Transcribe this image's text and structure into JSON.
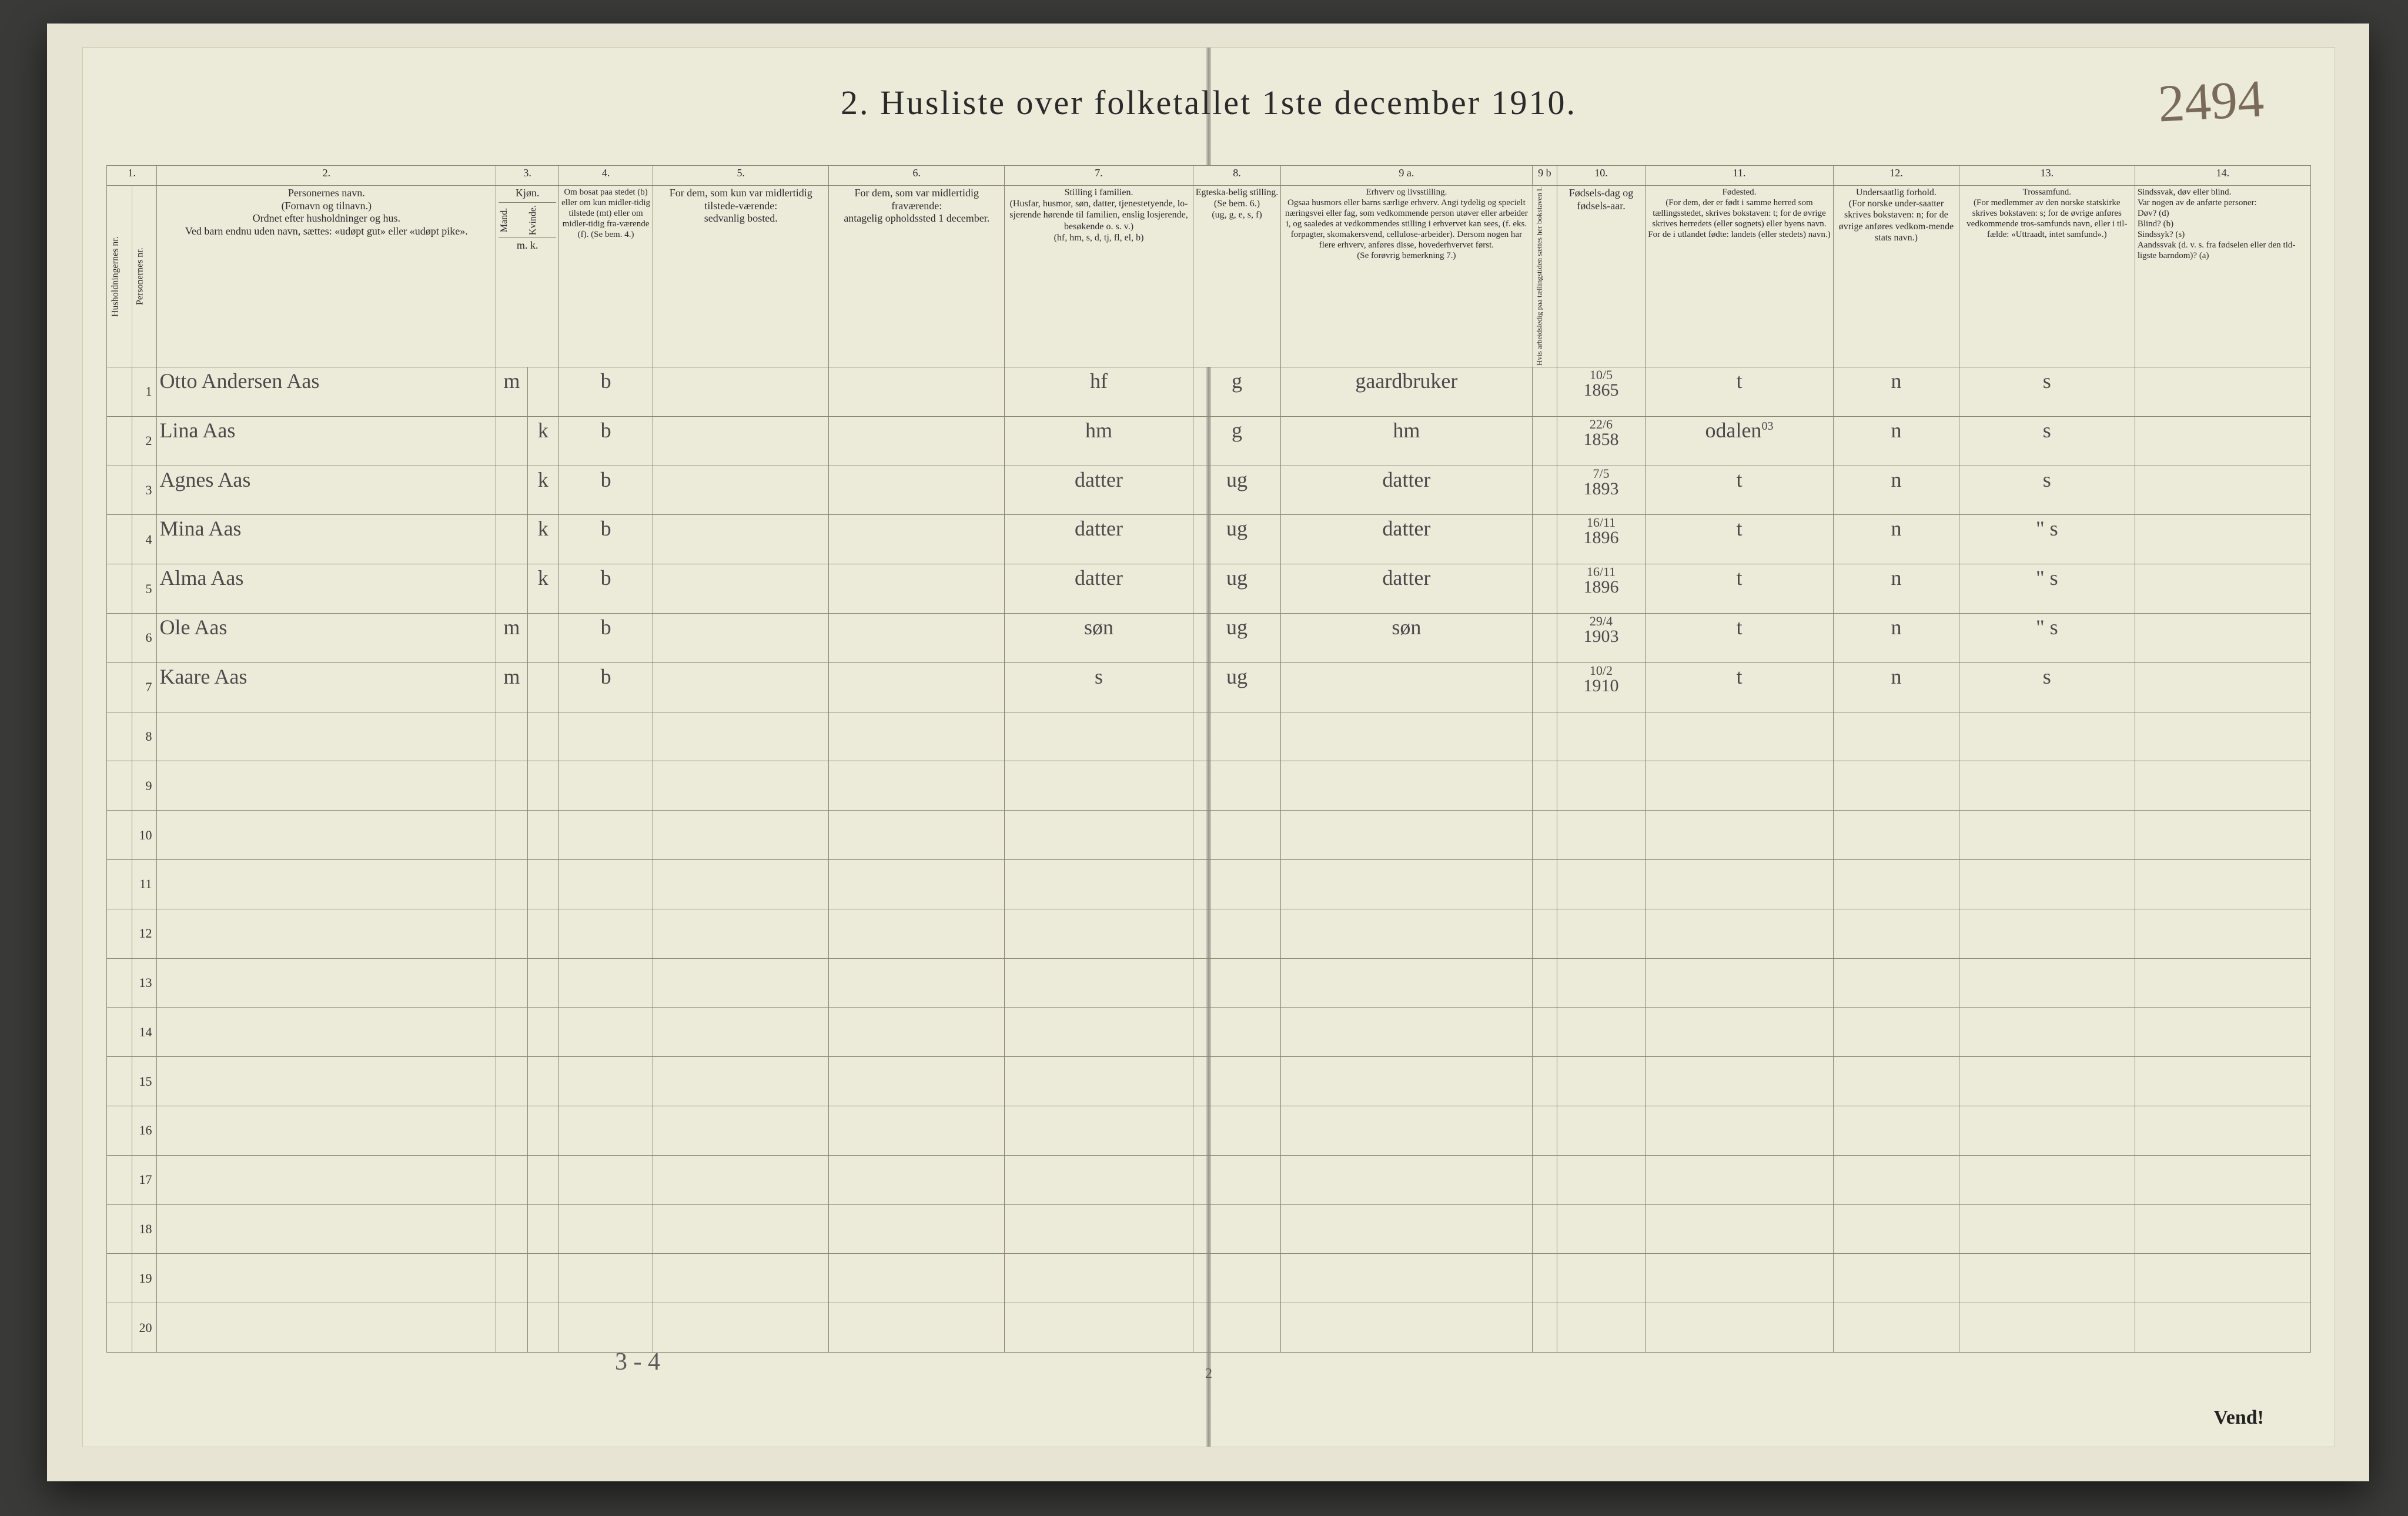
{
  "title": "2.  Husliste over folketallet 1ste december 1910.",
  "page_number_handwritten": "2494",
  "footer_page": "2",
  "vend": "Vend!",
  "tally": "3 - 4",
  "colors": {
    "paper": "#ecead9",
    "ink_print": "#2a2a2a",
    "ink_hand": "#4a4a4a",
    "rule": "#8a8470",
    "background": "#3a3a38"
  },
  "col_numbers": [
    "1.",
    "2.",
    "3.",
    "4.",
    "5.",
    "6.",
    "7.",
    "8.",
    "9 a.",
    "9 b",
    "10.",
    "11.",
    "12.",
    "13.",
    "14."
  ],
  "headers": {
    "c1a": "Husholdningernes nr.",
    "c1b": "Personernes nr.",
    "c2": "Personernes navn.\n(Fornavn og tilnavn.)\nOrdnet efter husholdninger og hus.\nVed barn endnu uden navn, sættes: «udøpt gut» eller «udøpt pike».",
    "c3": "Kjøn.",
    "c3a": "Mand.",
    "c3b": "Kvinde.",
    "c3sub": "m.  k.",
    "c4": "Om bosat paa stedet (b) eller om kun midler-tidig tilstede (mt) eller om midler-tidig fra-værende (f). (Se bem. 4.)",
    "c5": "For dem, som kun var midlertidig tilstede-værende:\nsedvanlig bosted.",
    "c6": "For dem, som var midlertidig fraværende:\nantagelig opholdssted 1 december.",
    "c7": "Stilling i familien.\n(Husfar, husmor, søn, datter, tjenestetyende, lo-sjerende hørende til familien, enslig losjerende, besøkende o. s. v.)\n(hf, hm, s, d, tj, fl, el, b)",
    "c8": "Egteska-belig stilling.\n(Se bem. 6.)\n(ug, g, e, s, f)",
    "c9a": "Erhverv og livsstilling.\nOgsaa husmors eller barns særlige erhverv. Angi tydelig og specielt næringsvei eller fag, som vedkommende person utøver eller arbeider i, og saaledes at vedkommendes stilling i erhvervet kan sees, (f. eks. forpagter, skomakersvend, cellulose-arbeider). Dersom nogen har flere erhverv, anføres disse, hovederhvervet først.\n(Se forøvrig bemerkning 7.)",
    "c9b": "Hvis arbeidsledig paa tællingstiden sættes her bokstaven  l.",
    "c10": "Fødsels-dag og fødsels-aar.",
    "c11": "Fødested.\n(For dem, der er født i samme herred som tællingsstedet, skrives bokstaven: t; for de øvrige skrives herredets (eller sognets) eller byens navn. For de i utlandet fødte: landets (eller stedets) navn.)",
    "c12": "Undersaatlig forhold.\n(For norske under-saatter skrives bokstaven: n; for de øvrige anføres vedkom-mende stats navn.)",
    "c13": "Trossamfund.\n(For medlemmer av den norske statskirke skrives bokstaven: s; for de øvrige anføres vedkommende tros-samfunds navn, eller i til-fælde: «Uttraadt, intet samfund».)",
    "c14": "Sindssvak, døv eller blind.\nVar nogen av de anførte personer:\nDøv?       (d)\nBlind?     (b)\nSindssyk? (s)\nAandssvak (d. v. s. fra fødselen eller den tid-ligste barndom)? (a)"
  },
  "rows": [
    {
      "n": "1",
      "name": "Otto Andersen Aas",
      "sex_m": "m",
      "sex_k": "",
      "res": "b",
      "fam": "hf",
      "eg": "g",
      "occ": "gaardbruker",
      "dob_top": "10/5",
      "dob": "1865",
      "birthplace": "t",
      "nat": "n",
      "rel": "s"
    },
    {
      "n": "2",
      "name": "Lina Aas",
      "sex_m": "",
      "sex_k": "k",
      "res": "b",
      "fam": "hm",
      "eg": "g",
      "occ": "hm",
      "dob_top": "22/6",
      "dob": "1858",
      "birthplace": "odalen",
      "birthplace_sup": "03",
      "nat": "n",
      "rel": "s"
    },
    {
      "n": "3",
      "name": "Agnes Aas",
      "sex_m": "",
      "sex_k": "k",
      "res": "b",
      "fam": "datter",
      "eg": "ug",
      "occ": "datter",
      "dob_top": "7/5",
      "dob": "1893",
      "birthplace": "t",
      "nat": "n",
      "rel": "s"
    },
    {
      "n": "4",
      "name": "Mina Aas",
      "sex_m": "",
      "sex_k": "k",
      "res": "b",
      "fam": "datter",
      "eg": "ug",
      "occ": "datter",
      "dob_top": "16/11",
      "dob": "1896",
      "birthplace": "t",
      "nat": "n",
      "rel": "s",
      "rel_mark": "\""
    },
    {
      "n": "5",
      "name": "Alma Aas",
      "sex_m": "",
      "sex_k": "k",
      "res": "b",
      "fam": "datter",
      "eg": "ug",
      "occ": "datter",
      "dob_top": "16/11",
      "dob": "1896",
      "birthplace": "t",
      "nat": "n",
      "rel": "s",
      "rel_mark": "\""
    },
    {
      "n": "6",
      "name": "Ole Aas",
      "sex_m": "m",
      "sex_k": "",
      "res": "b",
      "fam": "søn",
      "eg": "ug",
      "occ": "søn",
      "dob_top": "29/4",
      "dob": "1903",
      "birthplace": "t",
      "nat": "n",
      "rel": "s",
      "rel_mark": "\""
    },
    {
      "n": "7",
      "name": "Kaare Aas",
      "sex_m": "m",
      "sex_k": "",
      "res": "b",
      "fam": "s",
      "eg": "ug",
      "occ": "",
      "dob_top": "10/2",
      "dob": "1910",
      "birthplace": "t",
      "nat": "n",
      "rel": "s"
    }
  ],
  "empty_rows": [
    "8",
    "9",
    "10",
    "11",
    "12",
    "13",
    "14",
    "15",
    "16",
    "17",
    "18",
    "19",
    "20"
  ]
}
